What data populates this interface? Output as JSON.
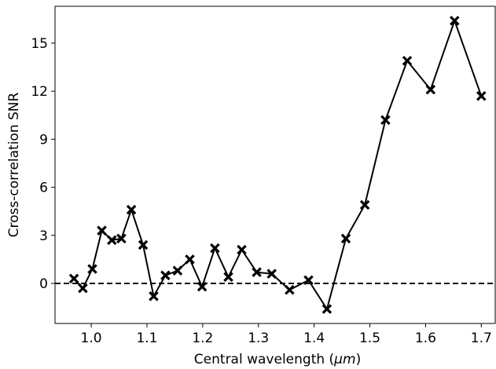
{
  "chart_data": {
    "type": "line",
    "title": "",
    "xlabel": "Central wavelength (μm)",
    "ylabel": "Cross-correlation SNR",
    "xlim": [
      0.935,
      1.725
    ],
    "ylim": [
      -2.5,
      17.3
    ],
    "xticks": [
      1.0,
      1.1,
      1.2,
      1.3,
      1.4,
      1.5,
      1.6,
      1.7
    ],
    "xtick_labels": [
      "1.0",
      "1.1",
      "1.2",
      "1.3",
      "1.4",
      "1.5",
      "1.6",
      "1.7"
    ],
    "yticks": [
      0,
      3,
      6,
      9,
      12,
      15
    ],
    "ytick_labels": [
      "0",
      "3",
      "6",
      "9",
      "12",
      "15"
    ],
    "grid": false,
    "reference_line": {
      "y": 0,
      "style": "dashed",
      "color": "#000000"
    },
    "series": [
      {
        "marker": "X",
        "color": "#000000",
        "x": [
          0.969,
          0.985,
          1.002,
          1.019,
          1.037,
          1.054,
          1.072,
          1.093,
          1.112,
          1.133,
          1.155,
          1.177,
          1.199,
          1.222,
          1.246,
          1.27,
          1.297,
          1.324,
          1.356,
          1.39,
          1.423,
          1.457,
          1.491,
          1.528,
          1.567,
          1.609,
          1.652,
          1.7
        ],
        "y": [
          0.3,
          -0.3,
          0.9,
          3.3,
          2.7,
          2.8,
          4.6,
          2.4,
          -0.8,
          0.5,
          0.8,
          1.5,
          -0.2,
          2.2,
          0.4,
          2.1,
          0.7,
          0.6,
          -0.4,
          0.2,
          -1.6,
          2.8,
          4.9,
          10.2,
          13.9,
          12.1,
          16.4,
          11.7
        ]
      }
    ]
  }
}
